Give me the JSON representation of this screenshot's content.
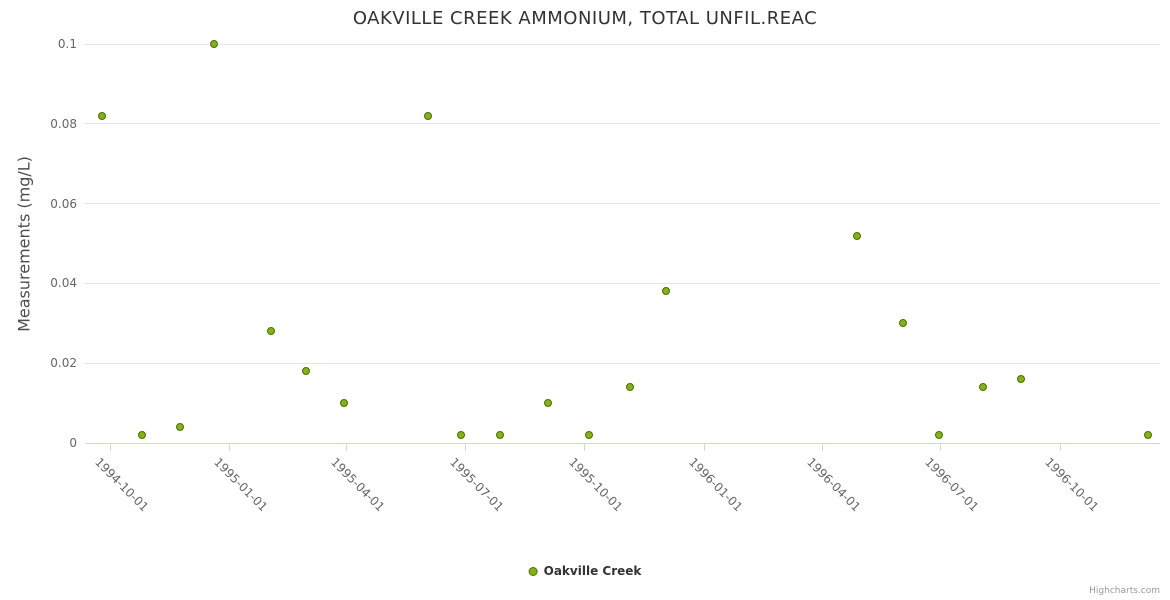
{
  "title": "OAKVILLE CREEK AMMONIUM, TOTAL UNFIL.REAC",
  "legend": {
    "series_label": "Oakville Creek"
  },
  "credits": "Highcharts.com",
  "chart_data": {
    "type": "scatter",
    "title": "OAKVILLE CREEK AMMONIUM, TOTAL UNFIL.REAC",
    "xlabel": "",
    "ylabel": "Measurements (mg/L)",
    "ylim": [
      0,
      0.1
    ],
    "y_ticks": [
      0,
      0.02,
      0.04,
      0.06,
      0.08,
      0.1
    ],
    "y_tick_labels": [
      "0",
      "0.02",
      "0.04",
      "0.06",
      "0.08",
      "0.1"
    ],
    "x_tick_labels": [
      "1994-10-01",
      "1995-01-01",
      "1995-04-01",
      "1995-07-01",
      "1995-10-01",
      "1996-01-01",
      "1996-04-01",
      "1996-07-01",
      "1996-10-01"
    ],
    "x_axis_range": [
      "1994-09-12",
      "1996-12-17"
    ],
    "grid": true,
    "legend_position": "bottom-center",
    "series": [
      {
        "name": "Oakville Creek",
        "marker_color": "#86b014",
        "marker_border_color": "#49700c",
        "points": [
          {
            "x": "1994-09-25",
            "y": 0.082
          },
          {
            "x": "1994-10-26",
            "y": 0.002
          },
          {
            "x": "1994-11-24",
            "y": 0.004
          },
          {
            "x": "1994-12-20",
            "y": 0.1
          },
          {
            "x": "1995-02-02",
            "y": 0.028
          },
          {
            "x": "1995-03-01",
            "y": 0.018
          },
          {
            "x": "1995-03-30",
            "y": 0.01
          },
          {
            "x": "1995-06-03",
            "y": 0.082
          },
          {
            "x": "1995-06-28",
            "y": 0.002
          },
          {
            "x": "1995-07-28",
            "y": 0.002
          },
          {
            "x": "1995-09-03",
            "y": 0.01
          },
          {
            "x": "1995-10-05",
            "y": 0.002
          },
          {
            "x": "1995-11-05",
            "y": 0.014
          },
          {
            "x": "1995-12-03",
            "y": 0.038
          },
          {
            "x": "1996-04-28",
            "y": 0.052
          },
          {
            "x": "1996-06-02",
            "y": 0.03
          },
          {
            "x": "1996-06-30",
            "y": 0.002
          },
          {
            "x": "1996-08-03",
            "y": 0.014
          },
          {
            "x": "1996-09-01",
            "y": 0.016
          },
          {
            "x": "1996-12-08",
            "y": 0.002
          }
        ]
      }
    ]
  }
}
